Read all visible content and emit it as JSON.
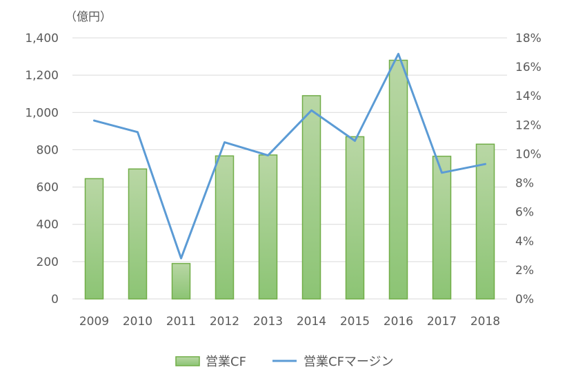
{
  "chart_data": {
    "type": "bar",
    "unit_label": "（億円）",
    "categories": [
      "2009",
      "2010",
      "2011",
      "2012",
      "2013",
      "2014",
      "2015",
      "2016",
      "2017",
      "2018"
    ],
    "series": [
      {
        "name": "営業CF",
        "type": "bar",
        "axis": "left",
        "values": [
          645,
          697,
          190,
          767,
          772,
          1090,
          870,
          1280,
          765,
          830
        ]
      },
      {
        "name": "営業CFマージン",
        "type": "line",
        "axis": "right",
        "values": [
          12.3,
          11.5,
          2.8,
          10.8,
          9.9,
          13.0,
          10.9,
          16.9,
          8.7,
          9.3
        ]
      }
    ],
    "y_left": {
      "ylim": [
        0,
        1400
      ],
      "ticks": [
        0,
        200,
        400,
        600,
        800,
        1000,
        1200,
        1400
      ],
      "tick_labels": [
        "0",
        "200",
        "400",
        "600",
        "800",
        "1,000",
        "1,200",
        "1,400"
      ]
    },
    "y_right": {
      "ylim": [
        0,
        18
      ],
      "ticks": [
        0,
        2,
        4,
        6,
        8,
        10,
        12,
        14,
        16,
        18
      ],
      "tick_labels": [
        "0%",
        "2%",
        "4%",
        "6%",
        "8%",
        "10%",
        "12%",
        "14%",
        "16%",
        "18%"
      ]
    },
    "grid": true,
    "legend_position": "bottom",
    "colors": {
      "bar_fill_top": "#b9d7a5",
      "bar_fill_bottom": "#8cc474",
      "bar_stroke": "#70ad47",
      "line": "#5b9bd5",
      "grid": "#d9d9d9",
      "text": "#595959"
    }
  }
}
